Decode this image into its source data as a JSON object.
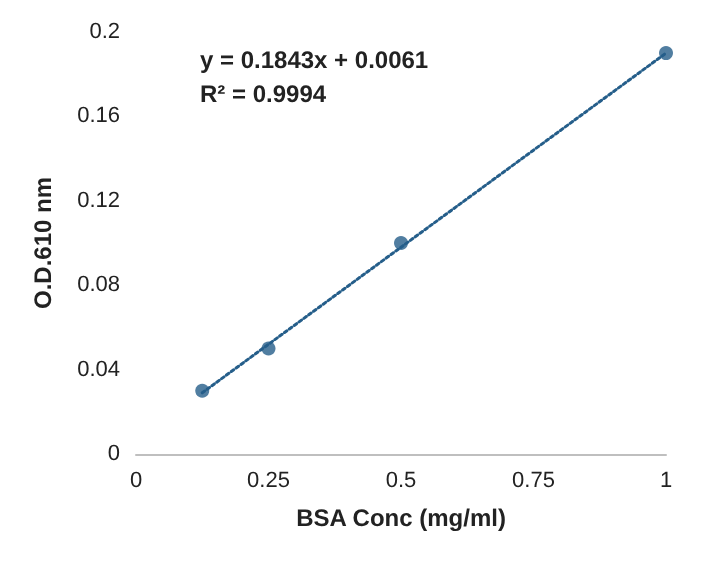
{
  "chart_data": {
    "type": "scatter",
    "xlabel": "BSA Conc (mg/ml)",
    "ylabel": "O.D.610 nm",
    "annotations": [
      "y = 0.1843x + 0.0061",
      "R² = 0.9994"
    ],
    "series": [
      {
        "color": "#255e8a",
        "x": [
          0.125,
          0.25,
          0.5,
          1
        ],
        "values": [
          0.03,
          0.05,
          0.1,
          0.19
        ],
        "marker": "circle"
      },
      {
        "type": "line",
        "color": "#255e8a",
        "x": [
          0.125,
          1
        ],
        "values": [
          0.029,
          0.19
        ],
        "marker": "none",
        "line_style": "dotted"
      }
    ],
    "xlim": [
      0,
      1
    ],
    "xticks": [
      0,
      0.25,
      0.5,
      0.75,
      1
    ],
    "ylim": [
      0,
      0.2
    ],
    "yticks": [
      0,
      0.04,
      0.08,
      0.12,
      0.16,
      0.2
    ],
    "grid": false
  }
}
